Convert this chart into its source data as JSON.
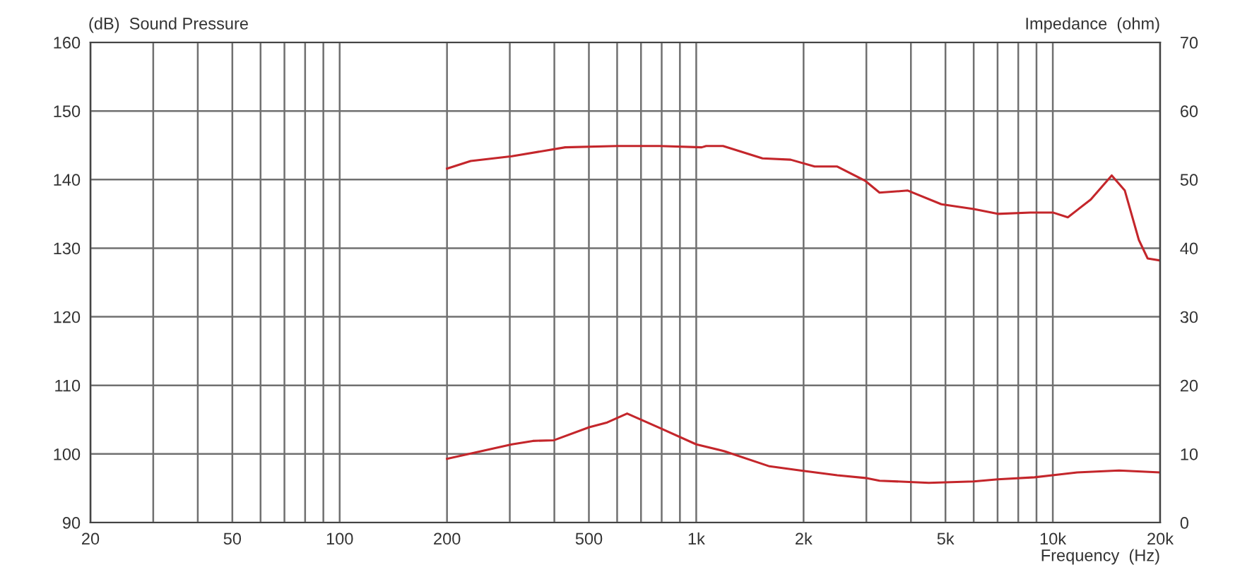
{
  "chart_data": {
    "type": "line",
    "xlabel": "Frequency  (Hz)",
    "ylabel": "(dB)  Sound Pressure",
    "y2label": "Impedance  (ohm)",
    "log": "x",
    "grid": true,
    "marker": "none",
    "line_style": "solid",
    "xlim": [
      20,
      20000
    ],
    "ylim": [
      90,
      160
    ],
    "y2lim": [
      0,
      70
    ],
    "xticks": [
      20,
      {
        "value": 30,
        "label": null
      },
      {
        "value": 40,
        "label": null
      },
      50,
      {
        "value": 60,
        "label": null
      },
      {
        "value": 70,
        "label": null
      },
      {
        "value": 80,
        "label": null
      },
      {
        "value": 90,
        "label": null
      },
      100,
      200,
      {
        "value": 300,
        "label": null
      },
      {
        "value": 400,
        "label": null
      },
      500,
      {
        "value": 600,
        "label": null
      },
      {
        "value": 700,
        "label": null
      },
      {
        "value": 800,
        "label": null
      },
      {
        "value": 900,
        "label": null
      },
      {
        "value": 1000,
        "label": "1k"
      },
      {
        "value": 2000,
        "label": "2k"
      },
      {
        "value": 3000,
        "label": null
      },
      {
        "value": 4000,
        "label": null
      },
      {
        "value": 5000,
        "label": "5k"
      },
      {
        "value": 6000,
        "label": null
      },
      {
        "value": 7000,
        "label": null
      },
      {
        "value": 8000,
        "label": null
      },
      {
        "value": 9000,
        "label": null
      },
      {
        "value": 10000,
        "label": "10k"
      },
      {
        "value": 20000,
        "label": "20k"
      }
    ],
    "yticks": [
      90,
      100,
      110,
      120,
      130,
      140,
      150,
      160
    ],
    "y2ticks": [
      0,
      10,
      20,
      30,
      40,
      50,
      60,
      70
    ],
    "series": [
      {
        "color": "#c4262b",
        "x": [
          200,
          233,
          304,
          429,
          600,
          789,
          1036,
          1066,
          1189,
          1534,
          1840,
          2147,
          2486,
          2981,
          3266,
          3920,
          4870,
          6000,
          7010,
          8650,
          10000,
          11020,
          12780,
          14630,
          15920,
          17430,
          18450,
          20000
        ],
        "values": [
          141.6,
          142.7,
          143.4,
          144.7,
          144.9,
          144.9,
          144.7,
          144.9,
          144.9,
          143.1,
          142.9,
          141.9,
          141.9,
          139.8,
          138.1,
          138.4,
          136.4,
          135.7,
          135.0,
          135.2,
          135.2,
          134.5,
          137.1,
          140.6,
          138.4,
          131.2,
          128.5,
          128.2
        ]
      },
      {
        "color": "#c4262b",
        "axis": "y2",
        "x": [
          200,
          249,
          304,
          348,
          399,
          501,
          563,
          640,
          789,
          1000,
          1200,
          1605,
          1960,
          2486,
          2981,
          3266,
          4490,
          6000,
          7010,
          8890,
          10380,
          11700,
          15340,
          20000
        ],
        "values": [
          9.3,
          10.4,
          11.4,
          11.9,
          12.0,
          13.9,
          14.6,
          15.9,
          13.8,
          11.4,
          10.4,
          8.2,
          7.6,
          6.9,
          6.5,
          6.1,
          5.8,
          6.0,
          6.3,
          6.6,
          7.0,
          7.3,
          7.6,
          7.3
        ]
      }
    ]
  }
}
